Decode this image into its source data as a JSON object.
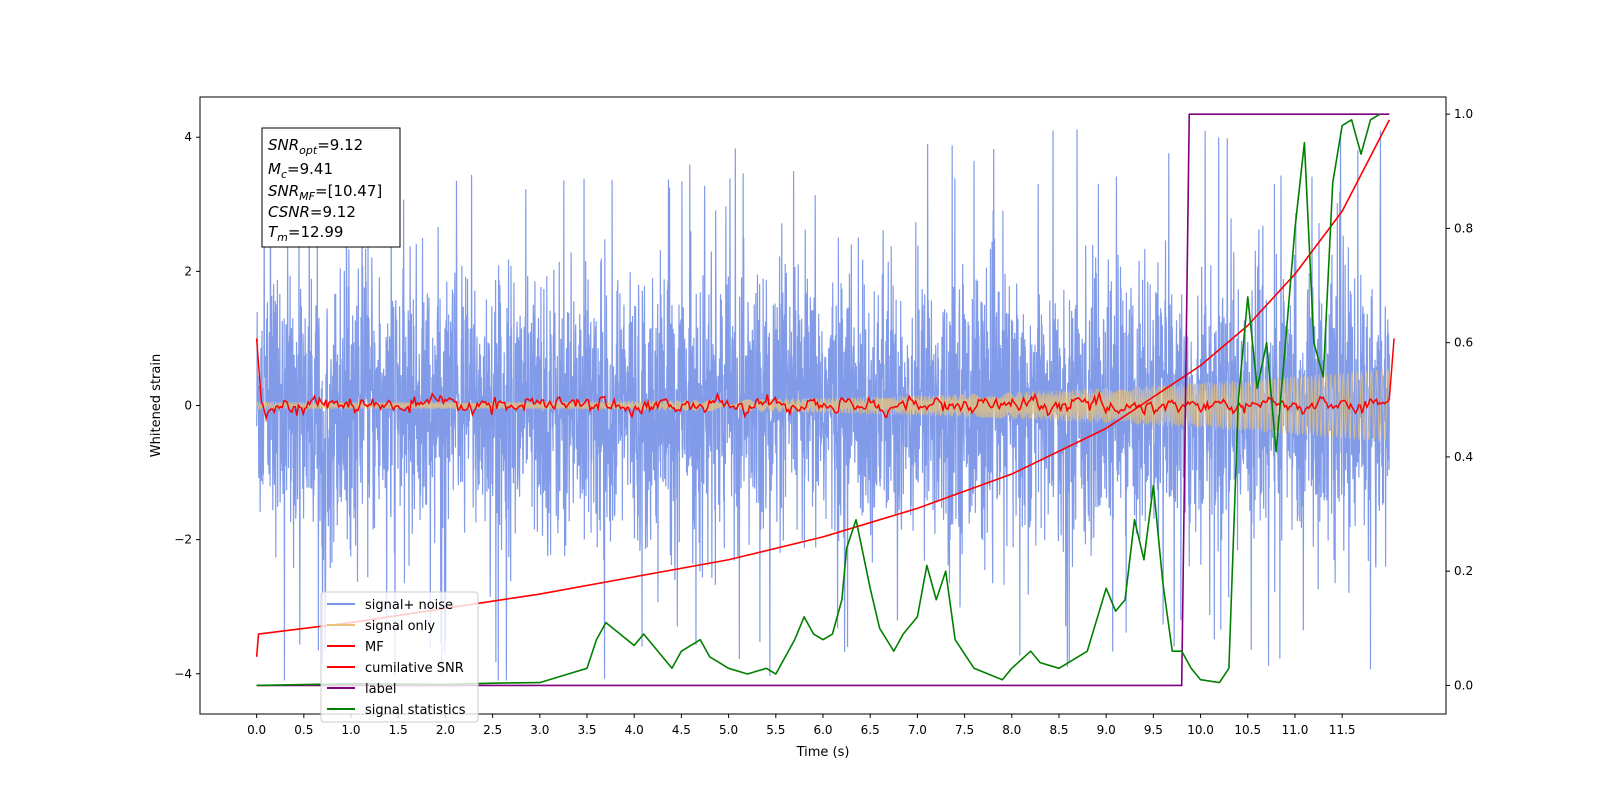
{
  "chart_data": {
    "type": "line",
    "xlabel": "Time (s)",
    "ylabel": "Whitened strain",
    "xlim": [
      -0.6,
      12.6
    ],
    "ylim": [
      -4.6,
      4.6
    ],
    "y2lim": [
      -0.05,
      1.03
    ],
    "xticks": [
      "0.0",
      "0.5",
      "1.0",
      "1.5",
      "2.0",
      "2.5",
      "3.0",
      "3.5",
      "4.0",
      "4.5",
      "5.0",
      "5.5",
      "6.0",
      "6.5",
      "7.0",
      "7.5",
      "8.0",
      "8.5",
      "9.0",
      "9.5",
      "10.0",
      "10.5",
      "11.0",
      "11.5"
    ],
    "yticks": [
      "−4",
      "−2",
      "0",
      "2",
      "4"
    ],
    "y2ticks": [
      "0.0",
      "0.2",
      "0.4",
      "0.6",
      "0.8",
      "1.0"
    ],
    "annotation": {
      "snr_opt": "9.12",
      "mc": "9.41",
      "snr_mf": "[10.47]",
      "csnr": "9.12",
      "tm": "12.99"
    },
    "legend_position": "lower-left",
    "series": [
      {
        "name": "signal+ noise",
        "color": "#7a96e8",
        "axis": "left",
        "kind": "noise",
        "amplitude_sigma": 1.0,
        "peak_range": [
          -4.1,
          4.15
        ]
      },
      {
        "name": "signal only",
        "color": "#e8c47a",
        "axis": "left",
        "kind": "chirp",
        "x_range": [
          0.0,
          12.0
        ],
        "envelope_start": 0.05,
        "envelope_end": 0.55
      },
      {
        "name": "MF",
        "color": "#ff0000",
        "axis": "left",
        "kind": "mf_trace",
        "x": [
          0.0,
          0.05,
          12.0,
          12.05
        ],
        "y": [
          1.0,
          0.05,
          -0.05,
          1.0
        ]
      },
      {
        "name": "cumilative SNR",
        "color": "#ff0000",
        "axis": "right",
        "x": [
          0.0,
          0.02,
          1.0,
          2.0,
          3.0,
          4.0,
          5.0,
          6.0,
          7.0,
          8.0,
          9.0,
          10.0,
          10.5,
          11.0,
          11.5,
          12.0
        ],
        "y": [
          0.05,
          0.09,
          0.11,
          0.135,
          0.16,
          0.19,
          0.22,
          0.26,
          0.31,
          0.37,
          0.45,
          0.56,
          0.63,
          0.72,
          0.83,
          0.99
        ]
      },
      {
        "name": "label",
        "color": "#800080",
        "axis": "right",
        "x": [
          0.0,
          9.8,
          9.88,
          12.0
        ],
        "y": [
          0.0,
          0.0,
          1.0,
          1.0
        ]
      },
      {
        "name": "signal statistics",
        "color": "#008000",
        "axis": "right",
        "x": [
          0.0,
          1.0,
          2.0,
          2.5,
          3.0,
          3.3,
          3.5,
          3.6,
          3.7,
          3.85,
          4.0,
          4.1,
          4.3,
          4.4,
          4.5,
          4.7,
          4.8,
          5.0,
          5.2,
          5.4,
          5.5,
          5.7,
          5.8,
          5.9,
          6.0,
          6.1,
          6.2,
          6.25,
          6.35,
          6.5,
          6.6,
          6.75,
          6.85,
          7.0,
          7.1,
          7.2,
          7.3,
          7.4,
          7.6,
          7.9,
          8.0,
          8.2,
          8.3,
          8.5,
          8.8,
          9.0,
          9.1,
          9.2,
          9.3,
          9.4,
          9.5,
          9.6,
          9.7,
          9.8,
          9.9,
          10.0,
          10.2,
          10.3,
          10.4,
          10.5,
          10.6,
          10.7,
          10.8,
          10.9,
          11.0,
          11.1,
          11.2,
          11.3,
          11.4,
          11.5,
          11.6,
          11.7,
          11.8,
          11.9
        ],
        "y": [
          0.0,
          0.003,
          0.002,
          0.004,
          0.005,
          0.02,
          0.03,
          0.08,
          0.11,
          0.09,
          0.07,
          0.09,
          0.05,
          0.03,
          0.06,
          0.08,
          0.05,
          0.03,
          0.02,
          0.03,
          0.02,
          0.08,
          0.12,
          0.09,
          0.08,
          0.09,
          0.15,
          0.24,
          0.29,
          0.17,
          0.1,
          0.06,
          0.09,
          0.12,
          0.21,
          0.15,
          0.2,
          0.08,
          0.03,
          0.01,
          0.03,
          0.06,
          0.04,
          0.03,
          0.06,
          0.17,
          0.13,
          0.15,
          0.29,
          0.22,
          0.35,
          0.18,
          0.06,
          0.06,
          0.03,
          0.01,
          0.005,
          0.03,
          0.5,
          0.68,
          0.52,
          0.6,
          0.41,
          0.6,
          0.8,
          0.95,
          0.6,
          0.54,
          0.88,
          0.98,
          0.99,
          0.93,
          0.99,
          1.0
        ]
      }
    ]
  }
}
